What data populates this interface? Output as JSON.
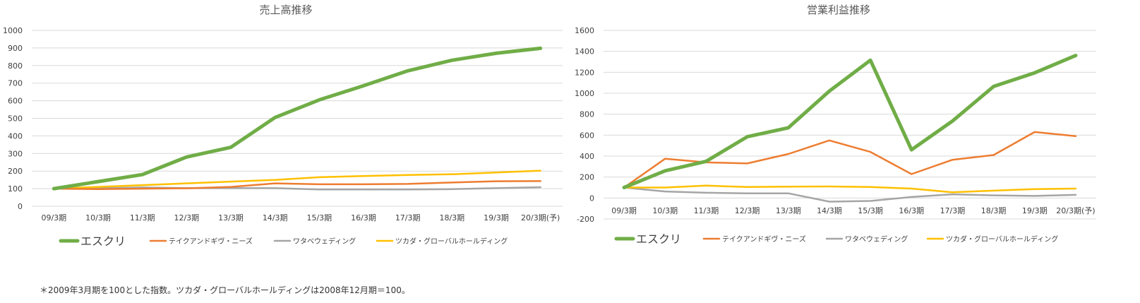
{
  "chart_data": [
    {
      "type": "line",
      "title": "売上高推移",
      "categories": [
        "09/3期",
        "10/3期",
        "11/3期",
        "12/3期",
        "13/3期",
        "14/3期",
        "15/3期",
        "16/3期",
        "17/3期",
        "18/3期",
        "19/3期",
        "20/3期(予)"
      ],
      "ylim": [
        0,
        1000
      ],
      "yticks": [
        0,
        100,
        200,
        300,
        400,
        500,
        600,
        700,
        800,
        900,
        1000
      ],
      "grid": true,
      "legend": "bottom",
      "series": [
        {
          "name": "エスクリ",
          "color": "#70ad47",
          "values": [
            100,
            140,
            180,
            280,
            335,
            505,
            605,
            685,
            770,
            830,
            870,
            898
          ]
        },
        {
          "name": "テイクアンドギヴ・ニーズ",
          "color": "#ed7d31",
          "values": [
            100,
            97,
            100,
            102,
            110,
            130,
            125,
            125,
            127,
            135,
            142,
            143
          ]
        },
        {
          "name": "ワタベウェディング",
          "color": "#a5a5a5",
          "values": [
            100,
            102,
            107,
            103,
            103,
            103,
            95,
            95,
            95,
            97,
            103,
            108
          ]
        },
        {
          "name": "ツカダ・グローバルホールディング",
          "color": "#ffc000",
          "values": [
            100,
            110,
            120,
            130,
            140,
            150,
            165,
            172,
            178,
            182,
            192,
            202
          ]
        }
      ]
    },
    {
      "type": "line",
      "title": "営業利益推移",
      "categories": [
        "09/3期",
        "10/3期",
        "11/3期",
        "12/3期",
        "13/3期",
        "14/3期",
        "15/3期",
        "16/3期",
        "17/3期",
        "18/3期",
        "19/3期",
        "20/3期(予)"
      ],
      "ylim": [
        -200,
        1600
      ],
      "yticks": [
        -200,
        0,
        200,
        400,
        600,
        800,
        1000,
        1200,
        1400,
        1600
      ],
      "grid": true,
      "legend": "bottom",
      "series": [
        {
          "name": "エスクリ",
          "color": "#70ad47",
          "values": [
            100,
            260,
            350,
            585,
            670,
            1020,
            1315,
            460,
            735,
            1065,
            1195,
            1360
          ]
        },
        {
          "name": "テイクアンドギヴ・ニーズ",
          "color": "#ed7d31",
          "values": [
            100,
            375,
            340,
            330,
            420,
            550,
            440,
            228,
            365,
            410,
            630,
            590
          ]
        },
        {
          "name": "ワタベウェディング",
          "color": "#a5a5a5",
          "values": [
            100,
            62,
            50,
            45,
            45,
            -35,
            -28,
            10,
            35,
            25,
            20,
            30
          ]
        },
        {
          "name": "ツカダ・グローバルホールディング",
          "color": "#ffc000",
          "values": [
            100,
            100,
            118,
            105,
            108,
            110,
            105,
            90,
            55,
            70,
            85,
            90
          ]
        }
      ]
    }
  ],
  "footnote": "＊2009年3月期を100とした指数。ツカダ・グローバルホールディングは2008年12月期＝100。"
}
